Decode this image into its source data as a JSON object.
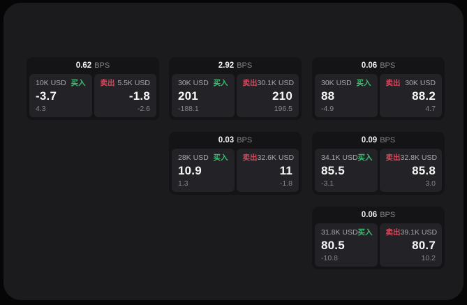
{
  "labels": {
    "buy": "买入",
    "sell": "卖出",
    "bps": "BPS"
  },
  "colors": {
    "buy_green": "#3ebd72",
    "sell_red": "#d4495c",
    "value_white": "#f5f5f7",
    "muted_gray": "#86868a",
    "window_bg": "#1b1b1d",
    "card_bg": "#141416",
    "panel_bg": "#232327"
  },
  "cards": [
    {
      "bps": "0.62",
      "row": 0,
      "col": 0,
      "buy": {
        "amount": "10K USD",
        "value": "-3.7",
        "delta": "4.3"
      },
      "sell": {
        "amount": "5.5K USD",
        "value": "-1.8",
        "delta": "-2.6"
      }
    },
    {
      "bps": "2.92",
      "row": 0,
      "col": 1,
      "buy": {
        "amount": "30K USD",
        "value": "201",
        "delta": "-188.1"
      },
      "sell": {
        "amount": "30.1K USD",
        "value": "210",
        "delta": "196.5"
      }
    },
    {
      "bps": "0.06",
      "row": 0,
      "col": 2,
      "buy": {
        "amount": "30K USD",
        "value": "88",
        "delta": "-4.9"
      },
      "sell": {
        "amount": "30K USD",
        "value": "88.2",
        "delta": "4.7"
      }
    },
    {
      "bps": "0.03",
      "row": 1,
      "col": 1,
      "buy": {
        "amount": "28K USD",
        "value": "10.9",
        "delta": "1.3"
      },
      "sell": {
        "amount": "32.6K USD",
        "value": "11",
        "delta": "-1.8"
      }
    },
    {
      "bps": "0.09",
      "row": 1,
      "col": 2,
      "buy": {
        "amount": "34.1K USD",
        "value": "85.5",
        "delta": "-3.1"
      },
      "sell": {
        "amount": "32.8K USD",
        "value": "85.8",
        "delta": "3.0"
      }
    },
    {
      "bps": "0.06",
      "row": 2,
      "col": 2,
      "buy": {
        "amount": "31.8K USD",
        "value": "80.5",
        "delta": "-10.8"
      },
      "sell": {
        "amount": "39.1K USD",
        "value": "80.7",
        "delta": "10.2"
      }
    }
  ]
}
